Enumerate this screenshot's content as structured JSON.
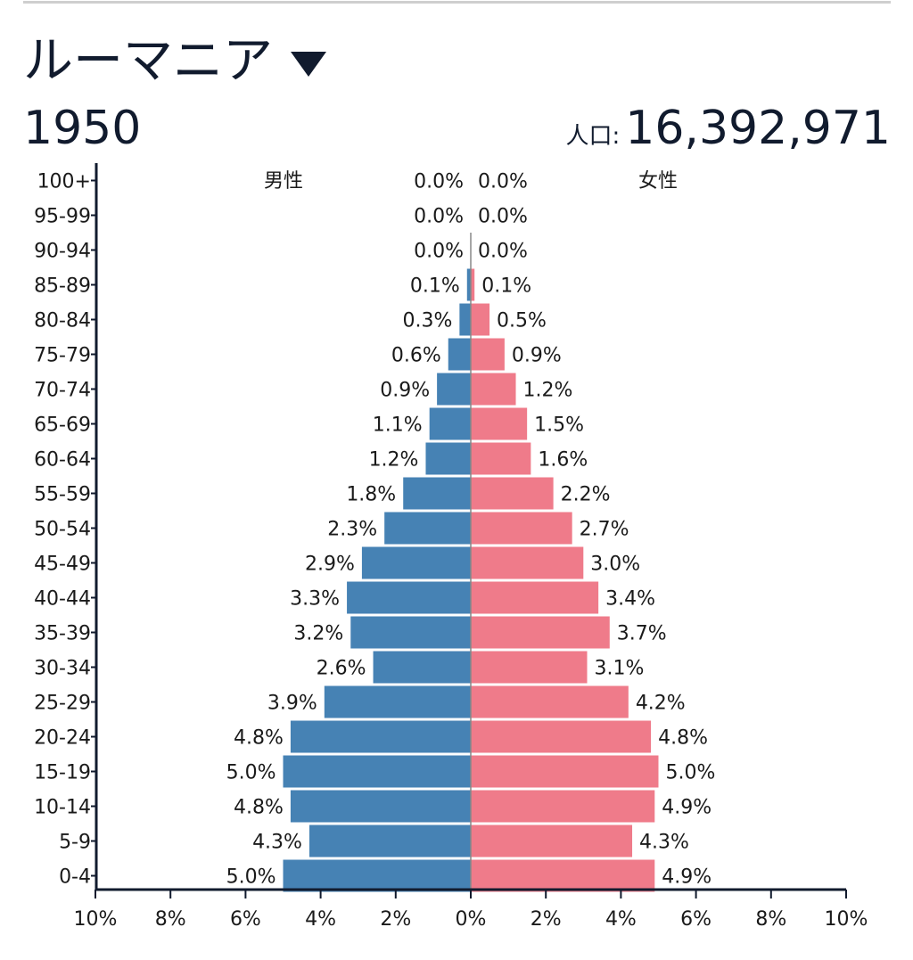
{
  "header": {
    "country": "ルーマニア",
    "dropdown_icon": "triangle-down-icon",
    "year": "1950",
    "population_label": "人口:",
    "population_value": "16,392,971"
  },
  "colors": {
    "male": "#4682b4",
    "female": "#ef7b8a",
    "axis": "#111b2e"
  },
  "chart_data": {
    "type": "bar",
    "orientation": "horizontal-diverging",
    "categories": [
      "100+",
      "95-99",
      "90-94",
      "85-89",
      "80-84",
      "75-79",
      "70-74",
      "65-69",
      "60-64",
      "55-59",
      "50-54",
      "45-49",
      "40-44",
      "35-39",
      "30-34",
      "25-29",
      "20-24",
      "15-19",
      "10-14",
      "5-9",
      "0-4"
    ],
    "series": [
      {
        "name": "男性",
        "values": [
          0.0,
          0.0,
          0.0,
          0.1,
          0.3,
          0.6,
          0.9,
          1.1,
          1.2,
          1.8,
          2.3,
          2.9,
          3.3,
          3.2,
          2.6,
          3.9,
          4.8,
          5.0,
          4.8,
          4.3,
          5.0
        ]
      },
      {
        "name": "女性",
        "values": [
          0.0,
          0.0,
          0.0,
          0.1,
          0.5,
          0.9,
          1.2,
          1.5,
          1.6,
          2.2,
          2.7,
          3.0,
          3.4,
          3.7,
          3.1,
          4.2,
          4.8,
          5.0,
          4.9,
          4.3,
          4.9
        ]
      }
    ],
    "data_labels_male": [
      "0.0%",
      "0.0%",
      "0.0%",
      "0.1%",
      "0.3%",
      "0.6%",
      "0.9%",
      "1.1%",
      "1.2%",
      "1.8%",
      "2.3%",
      "2.9%",
      "3.3%",
      "3.2%",
      "2.6%",
      "3.9%",
      "4.8%",
      "5.0%",
      "4.8%",
      "4.3%",
      "5.0%"
    ],
    "data_labels_female": [
      "0.0%",
      "0.0%",
      "0.0%",
      "0.1%",
      "0.5%",
      "0.9%",
      "1.2%",
      "1.5%",
      "1.6%",
      "2.2%",
      "2.7%",
      "3.0%",
      "3.4%",
      "3.7%",
      "3.1%",
      "4.2%",
      "4.8%",
      "5.0%",
      "4.9%",
      "4.3%",
      "4.9%"
    ],
    "x_ticks": [
      -10,
      -8,
      -6,
      -4,
      -2,
      0,
      2,
      4,
      6,
      8,
      10
    ],
    "x_tick_labels": [
      "10%",
      "8%",
      "6%",
      "4%",
      "2%",
      "0%",
      "2%",
      "4%",
      "6%",
      "8%",
      "10%"
    ],
    "xlim": [
      -10,
      10
    ],
    "grid": false
  }
}
